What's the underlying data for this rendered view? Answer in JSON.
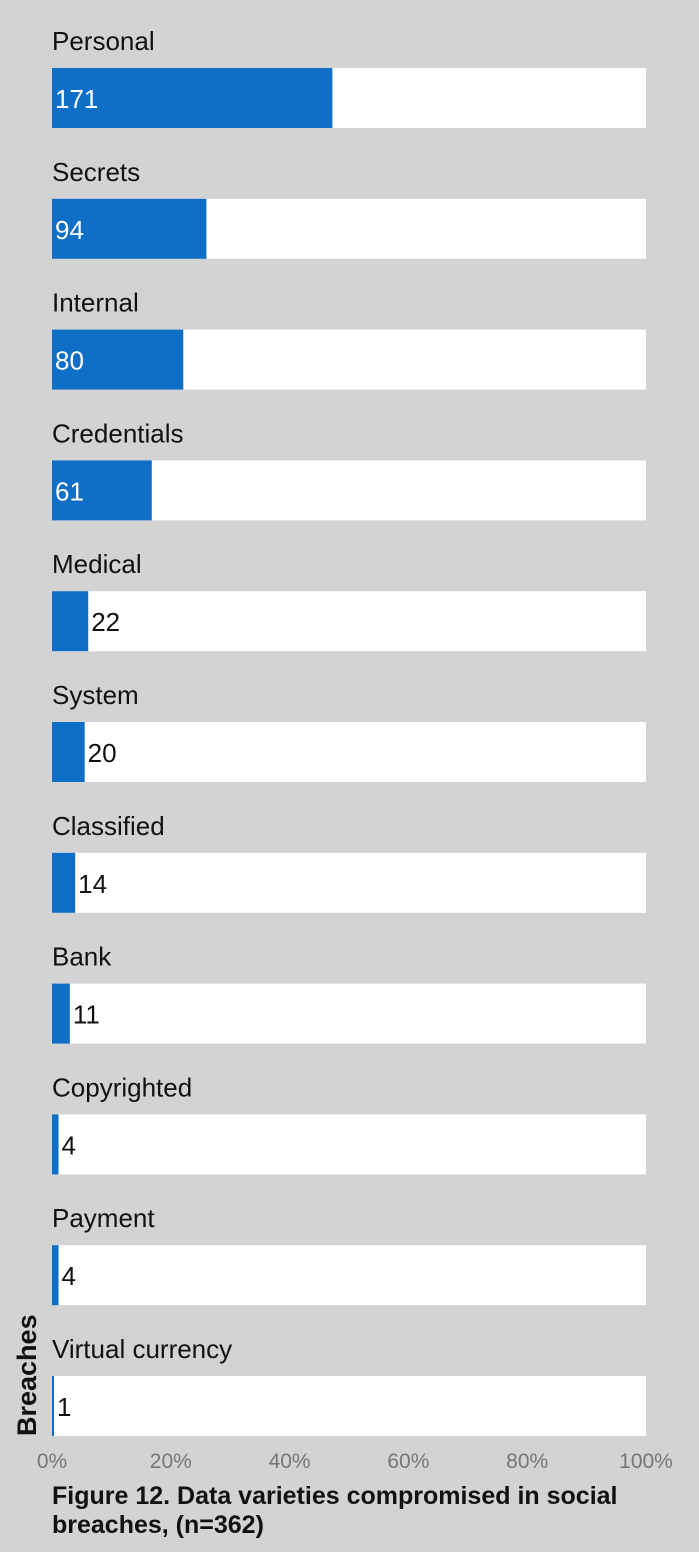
{
  "caption": "Figure 12.  Data varieties compromised in social breaches, (n=362)",
  "colors": {
    "background": "#d3d3d3",
    "bar": "#0f6fc6",
    "track": "#ffffff",
    "value_inside": "#ffffff",
    "value_outside": "#111111",
    "tick": "#777777"
  },
  "chart_data": {
    "type": "bar",
    "orientation": "horizontal",
    "n": 362,
    "ylabel": "Breaches",
    "xlim": [
      0,
      1
    ],
    "x_ticks": [
      "0%",
      "20%",
      "40%",
      "60%",
      "80%",
      "100%"
    ],
    "grid": false,
    "categories": [
      "Personal",
      "Secrets",
      "Internal",
      "Credentials",
      "Medical",
      "System",
      "Classified",
      "Bank",
      "Copyrighted",
      "Payment",
      "Virtual currency"
    ],
    "counts": [
      171,
      94,
      80,
      61,
      22,
      20,
      14,
      11,
      4,
      4,
      1
    ],
    "values": [
      0.472,
      0.26,
      0.221,
      0.168,
      0.061,
      0.055,
      0.039,
      0.03,
      0.011,
      0.011,
      0.003
    ]
  }
}
